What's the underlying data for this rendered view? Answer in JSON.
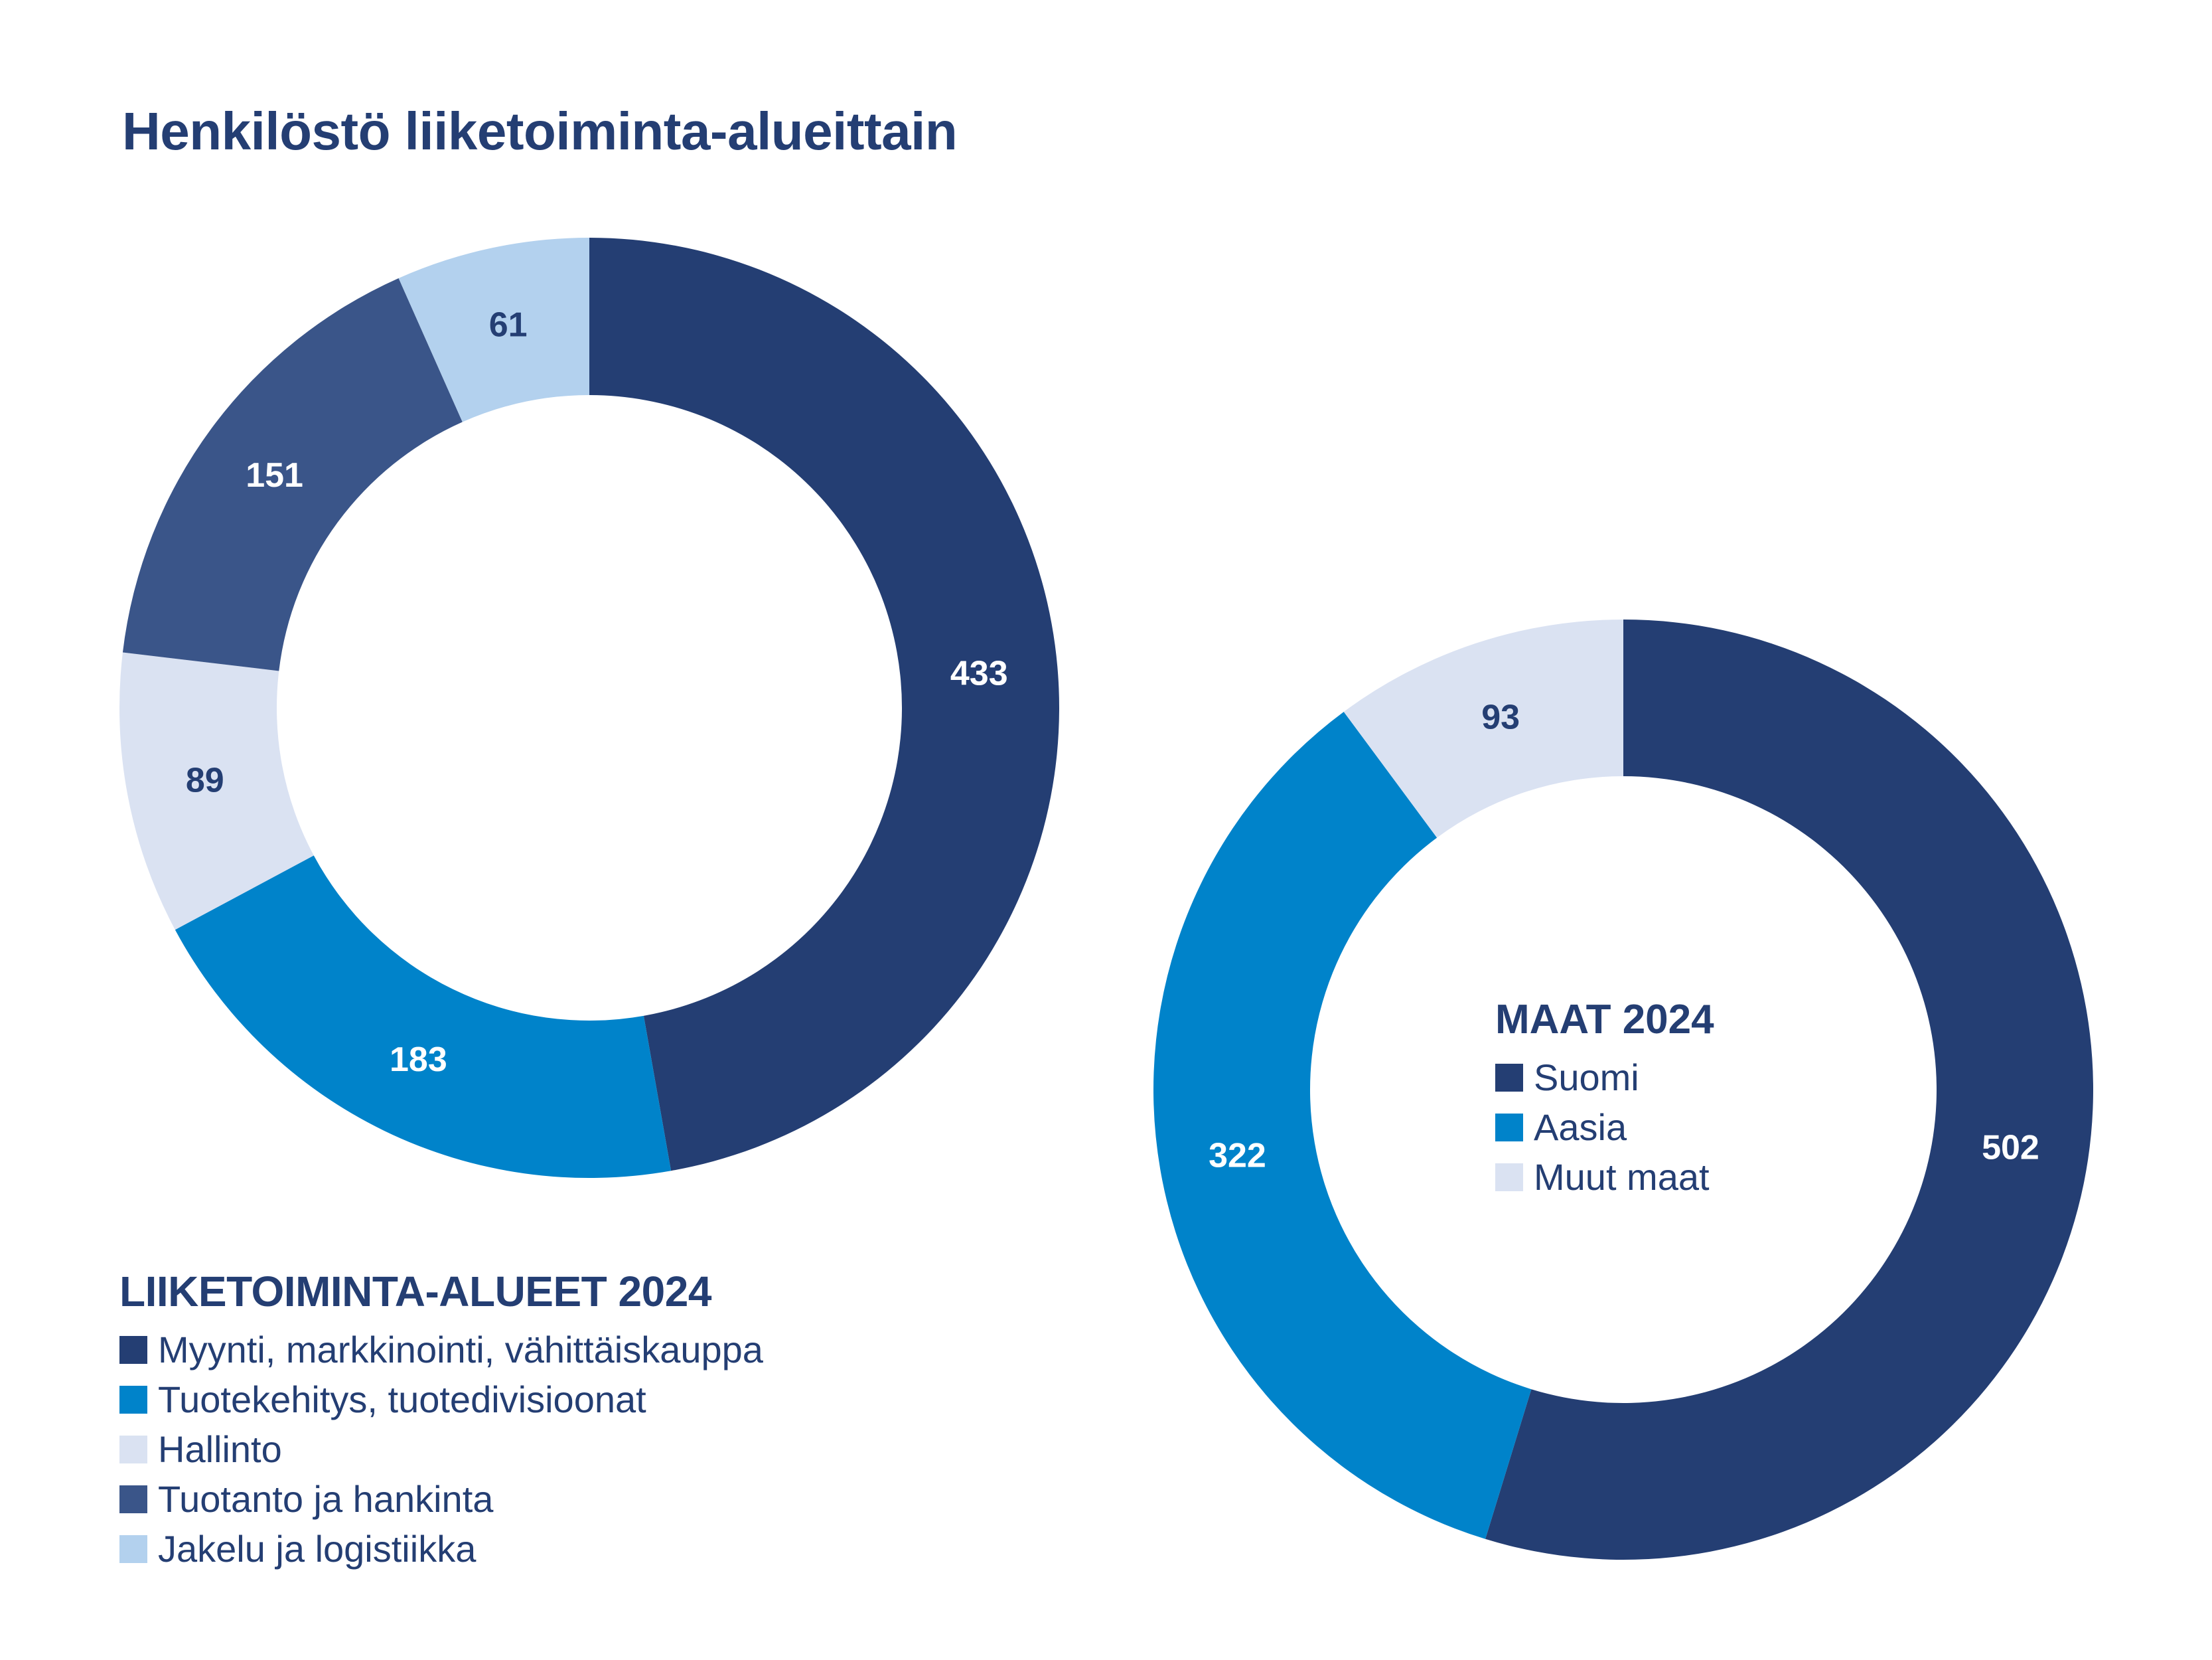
{
  "title": "Henkilöstö liiketoiminta-alueittain",
  "colors": {
    "navy": "#243E73",
    "blue": "#0083CA",
    "pale": "#DAE2F2",
    "steel": "#3A5589",
    "sky": "#B3D1EE",
    "text": "#243E73"
  },
  "legend_left": {
    "heading": "LIIKETOIMINTA-ALUEET 2024",
    "items": [
      {
        "label": "Myynti, markkinointi, vähittäiskauppa",
        "color": "#243E73"
      },
      {
        "label": "Tuotekehitys, tuotedivisioonat",
        "color": "#0083CA"
      },
      {
        "label": "Hallinto",
        "color": "#DAE2F2"
      },
      {
        "label": "Tuotanto ja hankinta",
        "color": "#3A5589"
      },
      {
        "label": "Jakelu ja logistiikka",
        "color": "#B3D1EE"
      }
    ]
  },
  "legend_right": {
    "heading": "MAAT 2024",
    "items": [
      {
        "label": "Suomi",
        "color": "#243E73"
      },
      {
        "label": "Aasia",
        "color": "#0083CA"
      },
      {
        "label": "Muut maat",
        "color": "#DAE2F2"
      }
    ]
  },
  "chart_data": [
    {
      "type": "pie",
      "variant": "donut",
      "title": "LIIKETOIMINTA-ALUEET 2024",
      "categories": [
        "Myynti, markkinointi, vähittäiskauppa",
        "Tuotekehitys, tuotedivisioonat",
        "Hallinto",
        "Tuotanto ja hankinta",
        "Jakelu ja logistiikka"
      ],
      "values": [
        433,
        183,
        89,
        151,
        61
      ],
      "colors": [
        "#243E73",
        "#0083CA",
        "#DAE2F2",
        "#3A5589",
        "#B3D1EE"
      ],
      "label_colors": [
        "#FFFFFF",
        "#FFFFFF",
        "#243E73",
        "#FFFFFF",
        "#243E73"
      ],
      "start_angle_deg": 0,
      "direction": "clockwise",
      "legend_position": "bottom-left"
    },
    {
      "type": "pie",
      "variant": "donut",
      "title": "MAAT 2024",
      "categories": [
        "Suomi",
        "Aasia",
        "Muut maat"
      ],
      "values": [
        502,
        322,
        93
      ],
      "colors": [
        "#243E73",
        "#0083CA",
        "#DAE2F2"
      ],
      "label_colors": [
        "#FFFFFF",
        "#FFFFFF",
        "#243E73"
      ],
      "start_angle_deg": 0,
      "direction": "clockwise",
      "legend_position": "center"
    }
  ]
}
